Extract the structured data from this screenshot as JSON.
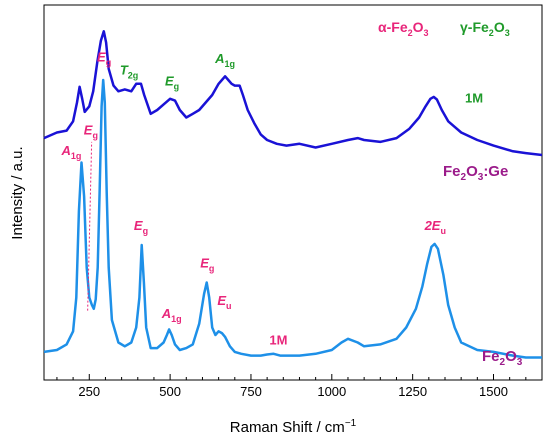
{
  "chart_data": {
    "type": "line",
    "xlabel": "Raman Shift / cm",
    "xlabel_sup": "−1",
    "ylabel": "Intensity / a.u.",
    "xlim": [
      110,
      1650
    ],
    "ylim": [
      0,
      1
    ],
    "x_ticks": [
      250,
      500,
      750,
      1000,
      1250,
      1500
    ],
    "y_tick_labels": "none",
    "colors": {
      "ge": "#1a12d6",
      "fe": "#1e90e8",
      "alpha": "#e8257a",
      "gamma": "#1f9a2a",
      "magnon": "#1f9a2a",
      "sample": "#9b1b8a"
    },
    "legend_top": {
      "alpha": {
        "prefix": "α-Fe",
        "sub1": "2",
        "mid": "O",
        "sub2": "3"
      },
      "gamma": {
        "prefix": "γ-Fe",
        "sub1": "2",
        "mid": "O",
        "sub2": "3"
      }
    },
    "series": [
      {
        "name": "Fe2O3:Ge",
        "label_parts": {
          "a": "Fe",
          "s1": "2",
          "b": "O",
          "s2": "3",
          "c": ":Ge"
        },
        "x": [
          110,
          150,
          180,
          200,
          212,
          220,
          228,
          236,
          250,
          262,
          275,
          286,
          295,
          302,
          310,
          325,
          340,
          360,
          380,
          395,
          410,
          420,
          440,
          460,
          480,
          500,
          515,
          530,
          550,
          570,
          590,
          610,
          630,
          650,
          660,
          670,
          680,
          690,
          700,
          715,
          725,
          740,
          760,
          780,
          800,
          830,
          860,
          900,
          950,
          1000,
          1050,
          1080,
          1100,
          1150,
          1200,
          1240,
          1270,
          1290,
          1305,
          1315,
          1325,
          1340,
          1360,
          1400,
          1450,
          1500,
          1560,
          1600,
          1650
        ],
        "y": [
          0.645,
          0.66,
          0.665,
          0.69,
          0.74,
          0.782,
          0.75,
          0.715,
          0.73,
          0.77,
          0.85,
          0.905,
          0.93,
          0.9,
          0.83,
          0.785,
          0.77,
          0.775,
          0.77,
          0.79,
          0.79,
          0.76,
          0.71,
          0.72,
          0.735,
          0.75,
          0.745,
          0.72,
          0.7,
          0.71,
          0.72,
          0.74,
          0.76,
          0.79,
          0.8,
          0.81,
          0.8,
          0.79,
          0.785,
          0.785,
          0.76,
          0.72,
          0.685,
          0.655,
          0.64,
          0.63,
          0.625,
          0.63,
          0.62,
          0.63,
          0.64,
          0.645,
          0.64,
          0.635,
          0.645,
          0.67,
          0.7,
          0.73,
          0.75,
          0.755,
          0.748,
          0.72,
          0.69,
          0.66,
          0.64,
          0.625,
          0.61,
          0.605,
          0.6
        ]
      },
      {
        "name": "Fe2O3",
        "label_parts": {
          "a": "Fe",
          "s1": "2",
          "b": "O",
          "s2": "3"
        },
        "x": [
          110,
          150,
          180,
          200,
          210,
          218,
          226,
          234,
          242,
          250,
          258,
          264,
          270,
          276,
          282,
          288,
          293,
          298,
          304,
          310,
          320,
          340,
          360,
          380,
          395,
          405,
          412,
          419,
          426,
          440,
          460,
          480,
          490,
          497,
          505,
          515,
          530,
          550,
          570,
          590,
          605,
          613,
          621,
          630,
          640,
          650,
          660,
          670,
          685,
          700,
          720,
          750,
          780,
          800,
          820,
          840,
          870,
          900,
          950,
          1000,
          1030,
          1050,
          1080,
          1100,
          1150,
          1200,
          1230,
          1260,
          1280,
          1295,
          1308,
          1318,
          1328,
          1345,
          1360,
          1380,
          1400,
          1450,
          1500,
          1560,
          1600,
          1650
        ],
        "y": [
          0.075,
          0.08,
          0.095,
          0.13,
          0.22,
          0.45,
          0.58,
          0.49,
          0.3,
          0.22,
          0.2,
          0.19,
          0.215,
          0.3,
          0.5,
          0.73,
          0.8,
          0.74,
          0.5,
          0.3,
          0.16,
          0.1,
          0.09,
          0.1,
          0.14,
          0.22,
          0.36,
          0.26,
          0.14,
          0.085,
          0.085,
          0.1,
          0.12,
          0.135,
          0.12,
          0.095,
          0.08,
          0.085,
          0.095,
          0.15,
          0.23,
          0.26,
          0.22,
          0.14,
          0.12,
          0.13,
          0.125,
          0.115,
          0.09,
          0.075,
          0.07,
          0.065,
          0.065,
          0.068,
          0.07,
          0.065,
          0.065,
          0.065,
          0.07,
          0.08,
          0.1,
          0.11,
          0.1,
          0.09,
          0.095,
          0.11,
          0.14,
          0.19,
          0.25,
          0.31,
          0.355,
          0.363,
          0.35,
          0.28,
          0.2,
          0.14,
          0.1,
          0.08,
          0.075,
          0.065,
          0.06,
          0.06
        ]
      }
    ],
    "annotations": [
      {
        "id": "t2g",
        "main": "T",
        "sub": "2g",
        "x": 373,
        "y": 0.815,
        "color": "gamma",
        "italic": true
      },
      {
        "id": "eg-ge",
        "main": "E",
        "sub": "g",
        "x": 506,
        "y": 0.785,
        "color": "gamma",
        "italic": true
      },
      {
        "id": "a1g-ge",
        "main": "A",
        "sub": "1g",
        "x": 670,
        "y": 0.845,
        "color": "gamma",
        "italic": true
      },
      {
        "id": "1m-ge",
        "main": "1M",
        "sub": "",
        "x": 1440,
        "y": 0.74,
        "color": "magnon",
        "italic": false
      },
      {
        "id": "a1g-1",
        "main": "A",
        "sub": "1g",
        "x": 195,
        "y": 0.6,
        "color": "alpha",
        "italic": true
      },
      {
        "id": "eg-1",
        "main": "E",
        "sub": "g",
        "x": 255,
        "y": 0.655,
        "color": "alpha",
        "italic": true
      },
      {
        "id": "eg-2",
        "main": "E",
        "sub": "g",
        "x": 296,
        "y": 0.85,
        "color": "alpha",
        "italic": true
      },
      {
        "id": "eg-3",
        "main": "E",
        "sub": "g",
        "x": 410,
        "y": 0.4,
        "color": "alpha",
        "italic": true
      },
      {
        "id": "a1g-2",
        "main": "A",
        "sub": "1g",
        "x": 505,
        "y": 0.165,
        "color": "alpha",
        "italic": true
      },
      {
        "id": "eg-4",
        "main": "E",
        "sub": "g",
        "x": 615,
        "y": 0.3,
        "color": "alpha",
        "italic": true
      },
      {
        "id": "eu-1",
        "main": "E",
        "sub": "u",
        "x": 668,
        "y": 0.2,
        "color": "alpha",
        "italic": true
      },
      {
        "id": "1m-fe",
        "main": "1M",
        "sub": "",
        "x": 835,
        "y": 0.095,
        "color": "alpha",
        "italic": false
      },
      {
        "id": "2eu",
        "main": "2E",
        "sub": "u",
        "x": 1320,
        "y": 0.4,
        "color": "alpha",
        "italic": true
      }
    ],
    "dotted_marker": {
      "x": 245,
      "y_from": 0.185,
      "y_to": 0.635,
      "color": "alpha"
    }
  }
}
